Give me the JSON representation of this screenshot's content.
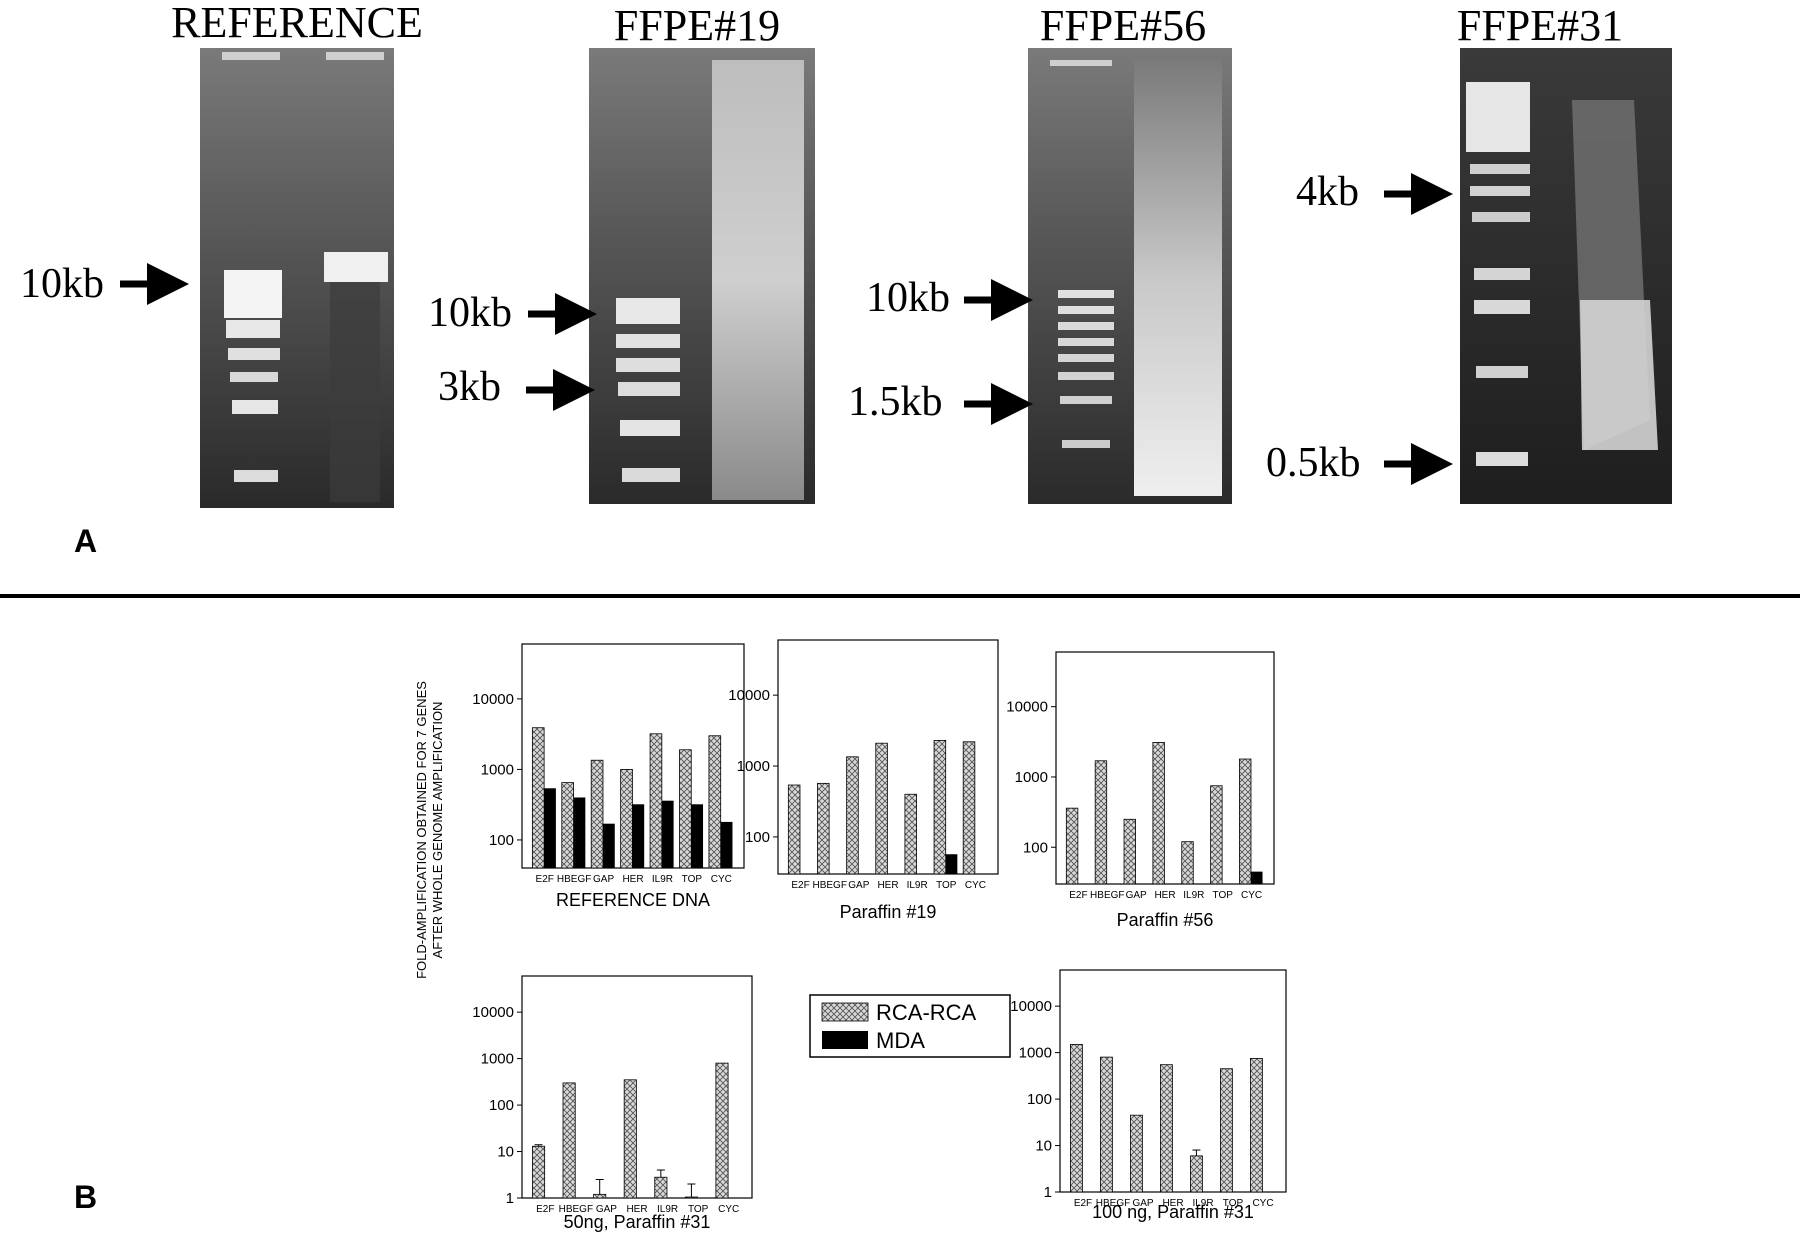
{
  "panelA": {
    "label": "A",
    "gels": [
      {
        "title": "REFERENCE",
        "markers": [
          "10kb"
        ]
      },
      {
        "title": "FFPE#19",
        "markers": [
          "10kb",
          "3kb"
        ]
      },
      {
        "title": "FFPE#56",
        "markers": [
          "10kb",
          "1.5kb"
        ]
      },
      {
        "title": "FFPE#31",
        "markers": [
          "4kb",
          "0.5kb"
        ]
      }
    ]
  },
  "panelB": {
    "label": "B",
    "ylabel_line1": "FOLD-AMPLIFICATION  OBTAINED FOR 7 GENES",
    "ylabel_line2": "AFTER WHOLE GENOME AMPLIFICATION",
    "legend": [
      {
        "name": "RCA-RCA",
        "pattern": "crosshatch"
      },
      {
        "name": "MDA",
        "pattern": "solid"
      }
    ]
  },
  "chart_data": [
    {
      "type": "bar",
      "title": "REFERENCE DNA",
      "scale": "log",
      "ylim": [
        40,
        60000
      ],
      "yticks": [
        "100",
        "1000",
        "10000"
      ],
      "categories": [
        "E2F",
        "HBEGF",
        "GAP",
        "HER",
        "IL9R",
        "TOP",
        "CYC"
      ],
      "series": [
        {
          "name": "RCA-RCA",
          "values": [
            3900,
            650,
            1350,
            1000,
            3200,
            1900,
            3000
          ]
        },
        {
          "name": "MDA",
          "values": [
            540,
            400,
            170,
            320,
            360,
            320,
            180
          ]
        }
      ]
    },
    {
      "type": "bar",
      "title": "Paraffin #19",
      "scale": "log",
      "ylim": [
        30,
        60000
      ],
      "yticks": [
        "100",
        "1000",
        "10000"
      ],
      "categories": [
        "E2F",
        "HBEGF",
        "GAP",
        "HER",
        "IL9R",
        "TOP",
        "CYC"
      ],
      "series": [
        {
          "name": "RCA-RCA",
          "values": [
            540,
            570,
            1350,
            2100,
            400,
            2300,
            2200
          ]
        },
        {
          "name": "MDA",
          "values": [
            null,
            null,
            null,
            null,
            null,
            57,
            null
          ]
        }
      ]
    },
    {
      "type": "bar",
      "title": "Paraffin #56",
      "scale": "log",
      "ylim": [
        30,
        60000
      ],
      "yticks": [
        "100",
        "1000",
        "10000"
      ],
      "categories": [
        "E2F",
        "HBEGF",
        "GAP",
        "HER",
        "IL9R",
        "TOP",
        "CYC"
      ],
      "series": [
        {
          "name": "RCA-RCA",
          "values": [
            360,
            1700,
            250,
            3100,
            120,
            750,
            1800
          ]
        },
        {
          "name": "MDA",
          "values": [
            null,
            null,
            null,
            null,
            null,
            null,
            45
          ]
        }
      ]
    },
    {
      "type": "bar",
      "title": "50ng, Paraffin #31",
      "scale": "log",
      "ylim": [
        1,
        60000
      ],
      "yticks": [
        "1",
        "10",
        "100",
        "1000",
        "10000"
      ],
      "categories": [
        "E2F",
        "HBEGF",
        "GAP",
        "HER",
        "IL9R",
        "TOP",
        "CYC"
      ],
      "series": [
        {
          "name": "RCA-RCA",
          "values": [
            13,
            300,
            1.2,
            350,
            2.8,
            1.05,
            800
          ]
        }
      ],
      "error_upper": [
        14,
        null,
        2.5,
        null,
        4,
        2,
        null
      ]
    },
    {
      "type": "bar",
      "title": "100 ng, Paraffin #31",
      "scale": "log",
      "ylim": [
        1,
        60000
      ],
      "yticks": [
        "1",
        "10",
        "100",
        "1000",
        "10000"
      ],
      "categories": [
        "E2F",
        "HBEGF",
        "GAP",
        "HER",
        "IL9R",
        "TOP",
        "CYC"
      ],
      "series": [
        {
          "name": "RCA-RCA",
          "values": [
            1500,
            800,
            45,
            550,
            6,
            450,
            750
          ]
        }
      ],
      "error_upper": [
        null,
        null,
        null,
        null,
        8,
        null,
        null
      ]
    }
  ]
}
